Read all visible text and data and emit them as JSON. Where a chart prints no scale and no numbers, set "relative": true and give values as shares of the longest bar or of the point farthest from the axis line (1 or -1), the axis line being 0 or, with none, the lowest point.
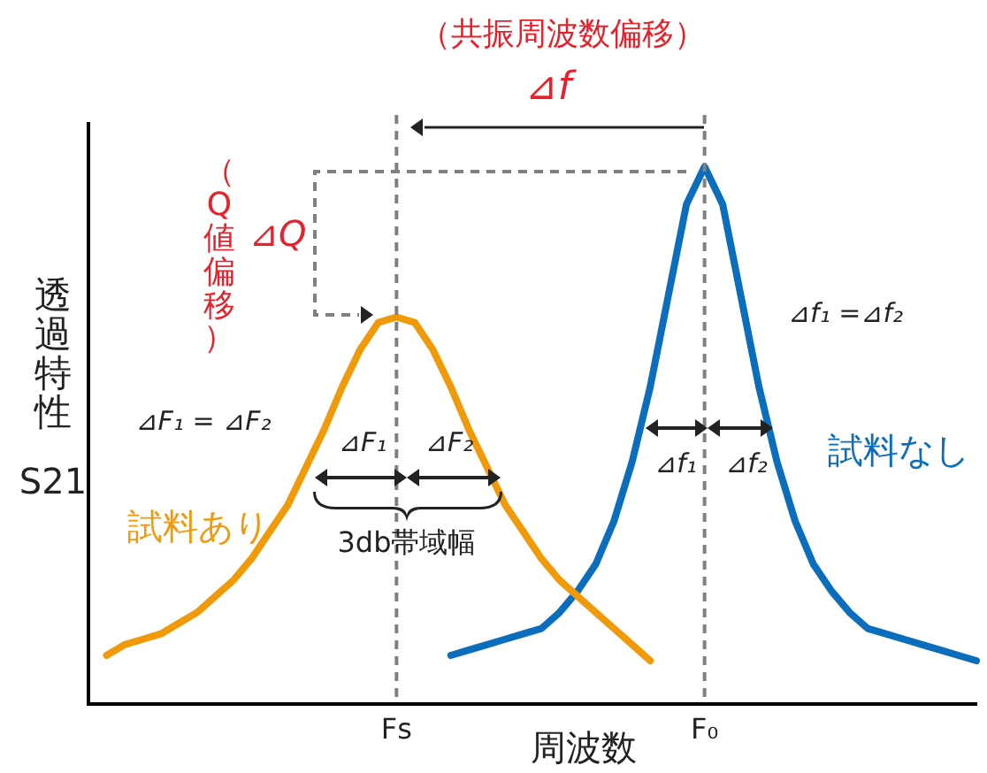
{
  "chart_data": {
    "type": "line",
    "relative": true,
    "xlabel": "周波数",
    "ylabel": "透過特性 S21",
    "categories": [
      null,
      null,
      null,
      null,
      null,
      null,
      null,
      null,
      null,
      null,
      null,
      null,
      null,
      null,
      null,
      null,
      null,
      "Fs",
      null,
      null,
      null,
      null,
      null,
      null,
      null,
      null,
      null,
      null,
      null,
      null,
      null,
      null,
      null,
      null,
      "F₀",
      null,
      null,
      null,
      null,
      null,
      null,
      null,
      null,
      null,
      null,
      null,
      null,
      null,
      null,
      null
    ],
    "series": [
      {
        "name": "試料あり",
        "color": "#f09a0a",
        "values": [
          null,
          0.09,
          0.11,
          0.12,
          0.13,
          0.15,
          0.17,
          0.2,
          0.23,
          0.27,
          0.32,
          0.37,
          0.44,
          0.51,
          0.59,
          0.66,
          0.71,
          0.72,
          0.71,
          0.66,
          0.59,
          0.51,
          0.44,
          0.37,
          0.32,
          0.27,
          0.23,
          0.2,
          0.17,
          0.14,
          0.11,
          0.08,
          null,
          null,
          null,
          null,
          null,
          null,
          null,
          null,
          null,
          null,
          null,
          null,
          null,
          null,
          null,
          null,
          null,
          null
        ]
      },
      {
        "name": "試料なし",
        "color": "#0a6ebd",
        "values": [
          null,
          null,
          null,
          null,
          null,
          null,
          null,
          null,
          null,
          null,
          null,
          null,
          null,
          null,
          null,
          null,
          null,
          null,
          null,
          null,
          0.09,
          0.1,
          0.11,
          0.12,
          0.13,
          0.14,
          0.17,
          0.21,
          0.26,
          0.34,
          0.45,
          0.59,
          0.76,
          0.93,
          1.0,
          0.93,
          0.76,
          0.59,
          0.45,
          0.34,
          0.26,
          0.21,
          0.17,
          0.14,
          0.13,
          0.12,
          0.11,
          0.1,
          0.09,
          0.08
        ]
      }
    ],
    "ref_lines": [
      {
        "axis": "x",
        "value": "Fs",
        "color": "#808080",
        "line_style": "dashed"
      },
      {
        "axis": "x",
        "value": "F₀",
        "color": "#808080",
        "line_style": "dashed"
      }
    ],
    "annotations": [
      "（共振周波数偏移）",
      "⊿f",
      "（Q値偏移）",
      "⊿Q",
      "⊿F₁ = ⊿F₂",
      "⊿F₁",
      "⊿F₂",
      "3db帯域幅",
      "⊿f₁ =⊿f₂",
      "⊿f₁",
      "⊿f₂"
    ]
  }
}
